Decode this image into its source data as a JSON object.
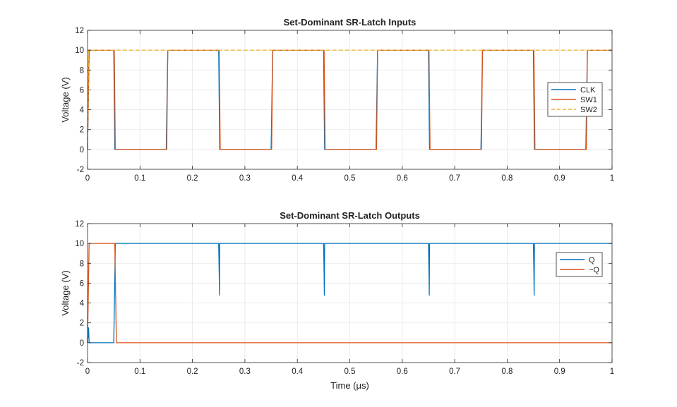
{
  "chart_data": [
    {
      "type": "line",
      "title": "Set-Dominant SR-Latch Inputs",
      "xlabel": "",
      "ylabel": "Voltage (V)",
      "xlim": [
        0,
        1
      ],
      "ylim": [
        -2,
        12
      ],
      "xticks": [
        0,
        0.1,
        0.2,
        0.3,
        0.4,
        0.5,
        0.6,
        0.7,
        0.8,
        0.9,
        1
      ],
      "xtick_labels": [
        "0",
        "0.1",
        "0.2",
        "0.3",
        "0.4",
        "0.5",
        "0.6",
        "0.7",
        "0.8",
        "0.9",
        "1"
      ],
      "yticks": [
        -2,
        0,
        2,
        4,
        6,
        8,
        10,
        12
      ],
      "ytick_labels": [
        "-2",
        "0",
        "2",
        "4",
        "6",
        "8",
        "10",
        "12"
      ],
      "grid": true,
      "legend": "right",
      "series": [
        {
          "name": "CLK",
          "color": "#0072BD",
          "style": "solid",
          "x": [
            0,
            0.003,
            0.05,
            0.052,
            0.15,
            0.153,
            0.25,
            0.252,
            0.35,
            0.353,
            0.45,
            0.452,
            0.55,
            0.553,
            0.65,
            0.652,
            0.75,
            0.753,
            0.85,
            0.852,
            0.95,
            0.953,
            1
          ],
          "y": [
            0,
            10,
            10,
            0,
            0,
            10,
            10,
            0,
            0,
            10,
            10,
            0,
            0,
            10,
            10,
            0,
            0,
            10,
            10,
            0,
            0,
            10,
            10
          ]
        },
        {
          "name": "SW1",
          "color": "#D95319",
          "style": "solid",
          "x": [
            0,
            0.003,
            0.051,
            0.053,
            0.151,
            0.153,
            0.251,
            0.253,
            0.351,
            0.353,
            0.451,
            0.453,
            0.551,
            0.553,
            0.651,
            0.653,
            0.751,
            0.753,
            0.851,
            0.853,
            0.951,
            0.953,
            1
          ],
          "y": [
            0,
            10,
            10,
            0,
            0,
            10,
            10,
            0,
            0,
            10,
            10,
            0,
            0,
            10,
            10,
            0,
            0,
            10,
            10,
            0,
            0,
            10,
            10
          ]
        },
        {
          "name": "SW2",
          "color": "#EDB120",
          "style": "dashed",
          "x": [
            0,
            0.002,
            1
          ],
          "y": [
            0,
            10,
            10
          ]
        }
      ]
    },
    {
      "type": "line",
      "title": "Set-Dominant SR-Latch Outputs",
      "xlabel": "Time (μs)",
      "ylabel": "Voltage (V)",
      "xlim": [
        0,
        1
      ],
      "ylim": [
        -2,
        12
      ],
      "xticks": [
        0,
        0.1,
        0.2,
        0.3,
        0.4,
        0.5,
        0.6,
        0.7,
        0.8,
        0.9,
        1
      ],
      "xtick_labels": [
        "0",
        "0.1",
        "0.2",
        "0.3",
        "0.4",
        "0.5",
        "0.6",
        "0.7",
        "0.8",
        "0.9",
        "1"
      ],
      "yticks": [
        -2,
        0,
        2,
        4,
        6,
        8,
        10,
        12
      ],
      "ytick_labels": [
        "-2",
        "0",
        "2",
        "4",
        "6",
        "8",
        "10",
        "12"
      ],
      "grid": true,
      "legend": "right",
      "series": [
        {
          "name": "Q",
          "color": "#0072BD",
          "style": "solid",
          "x": [
            0,
            0.002,
            0.003,
            0.05,
            0.053,
            0.25,
            0.251,
            0.2515,
            0.252,
            0.45,
            0.451,
            0.4515,
            0.452,
            0.65,
            0.651,
            0.6515,
            0.652,
            0.85,
            0.851,
            0.8515,
            0.852,
            1
          ],
          "y": [
            0,
            1.5,
            0,
            0,
            10,
            10,
            7,
            4.8,
            10,
            10,
            7,
            4.8,
            10,
            10,
            7,
            4.8,
            10,
            10,
            7,
            4.8,
            10,
            10
          ]
        },
        {
          "name": "~Q",
          "color": "#D95319",
          "style": "solid",
          "x": [
            0,
            0.003,
            0.052,
            0.055,
            1
          ],
          "y": [
            0,
            10,
            10,
            0,
            0
          ]
        }
      ]
    }
  ]
}
